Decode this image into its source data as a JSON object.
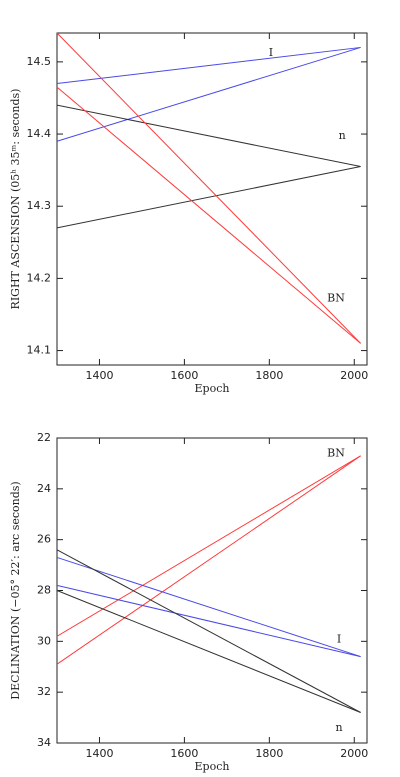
{
  "chart_data": [
    {
      "type": "line",
      "ylabel": "RIGHT ASCENSION (05ʰ 35ᵐ: seconds)",
      "xlabel": "Epoch",
      "x": [
        1300,
        2015
      ],
      "xlim": [
        1300,
        2030
      ],
      "xticks": [
        1400,
        1600,
        1800,
        2000
      ],
      "ylim": [
        14.08,
        14.54
      ],
      "yticks": [
        14.1,
        14.2,
        14.3,
        14.4,
        14.5
      ],
      "series": [
        {
          "name": "I",
          "color": "#4a4ae6",
          "lines": [
            [
              14.47,
              14.52
            ],
            [
              14.39,
              14.52
            ]
          ]
        },
        {
          "name": "n",
          "color": "#333333",
          "lines": [
            [
              14.44,
              14.355
            ],
            [
              14.27,
              14.355
            ]
          ]
        },
        {
          "name": "BN",
          "color": "#ff3b3b",
          "lines": [
            [
              14.54,
              14.11
            ],
            [
              14.465,
              14.11
            ]
          ]
        }
      ]
    },
    {
      "type": "line",
      "ylabel": "DECLINATION (−05° 22′: arc seconds)",
      "xlabel": "Epoch",
      "x": [
        1300,
        2015
      ],
      "xlim": [
        1300,
        2030
      ],
      "xticks": [
        1400,
        1600,
        1800,
        2000
      ],
      "ylim": [
        34,
        22
      ],
      "yticks": [
        22,
        24,
        26,
        28,
        30,
        32,
        34
      ],
      "series": [
        {
          "name": "BN",
          "color": "#ff3b3b",
          "lines": [
            [
              29.8,
              22.7
            ],
            [
              30.9,
              22.7
            ]
          ]
        },
        {
          "name": "I",
          "color": "#4a4ae6",
          "lines": [
            [
              26.7,
              30.6
            ],
            [
              27.8,
              30.6
            ]
          ]
        },
        {
          "name": "n",
          "color": "#333333",
          "lines": [
            [
              26.4,
              32.8
            ],
            [
              28.0,
              32.8
            ]
          ]
        }
      ]
    }
  ]
}
